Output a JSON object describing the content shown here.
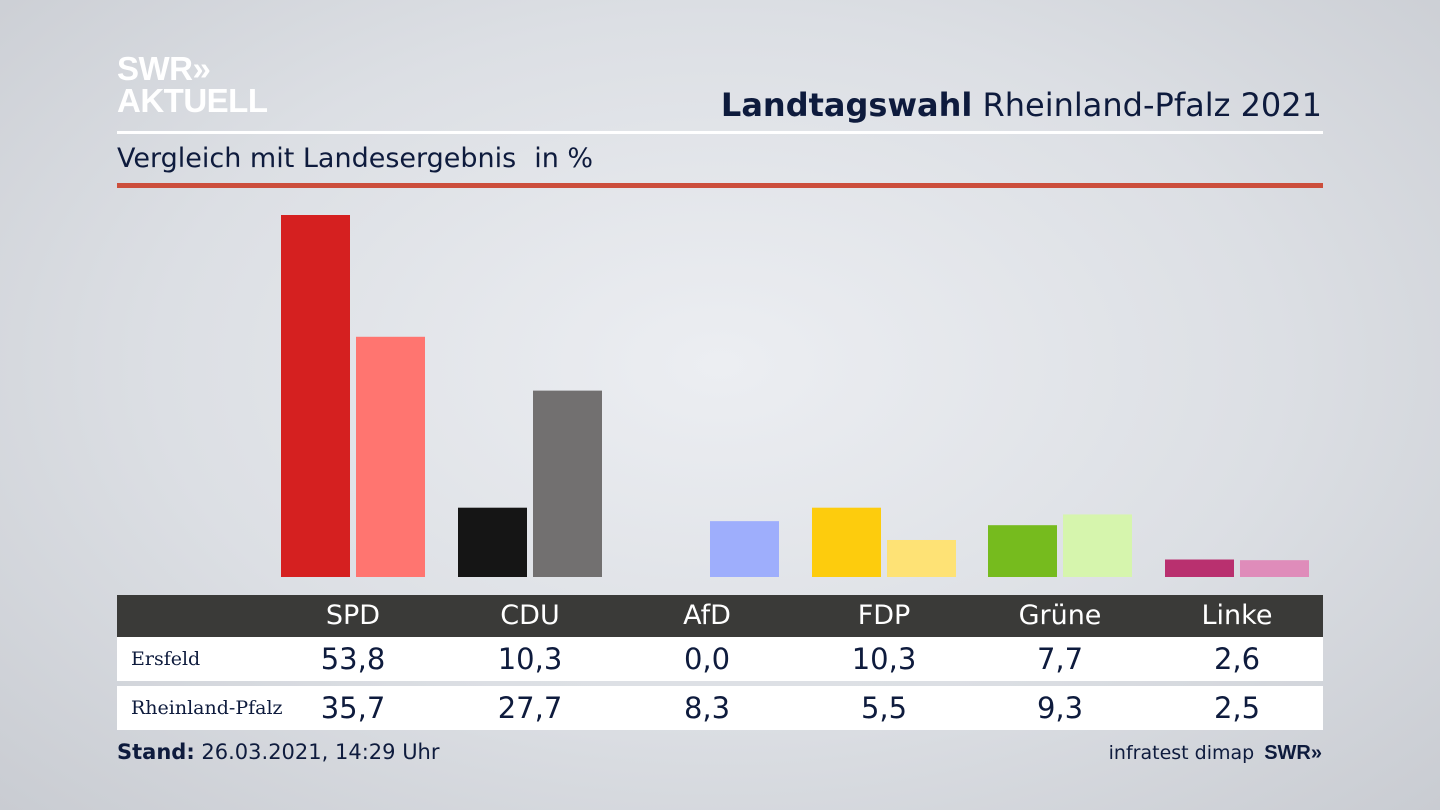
{
  "header": {
    "logo_line1": "SWR»",
    "logo_line2": "AKTUELL",
    "title_bold": "Landtagswahl",
    "title_rest": "Rheinland-Pfalz 2021",
    "subtitle": "Vergleich mit Landesergebnis",
    "unit": "in %"
  },
  "chart_data": {
    "type": "bar",
    "title": "Landtagswahl Rheinland-Pfalz 2021",
    "subtitle": "Vergleich mit Landesergebnis",
    "unit": "in %",
    "categories": [
      "SPD",
      "CDU",
      "AfD",
      "FDP",
      "Grüne",
      "Linke"
    ],
    "series": [
      {
        "name": "Ersfeld",
        "values": [
          53.8,
          10.3,
          0.0,
          10.3,
          7.7,
          2.6
        ],
        "labels": [
          "53,8",
          "10,3",
          "0,0",
          "10,3",
          "7,7",
          "2,6"
        ],
        "colors": [
          "#d52020",
          "#151515",
          "#9eaefc",
          "#fdcc0d",
          "#76bb1e",
          "#b9306f"
        ]
      },
      {
        "name": "Rheinland-Pfalz",
        "values": [
          35.7,
          27.7,
          8.3,
          5.5,
          9.3,
          2.5
        ],
        "labels": [
          "35,7",
          "27,7",
          "8,3",
          "5,5",
          "9,3",
          "2,5"
        ],
        "colors": [
          "#ff7570",
          "#727070",
          "#9eaefc",
          "#fee275",
          "#d6f5ad",
          "#df8cba"
        ]
      }
    ],
    "ylim": [
      0,
      53.8
    ],
    "grid": false,
    "legend": "table-below"
  },
  "footer": {
    "stand_label": "Stand:",
    "stand_value": "26.03.2021, 14:29 Uhr",
    "source": "infratest dimap",
    "source_brand": "SWR»"
  }
}
